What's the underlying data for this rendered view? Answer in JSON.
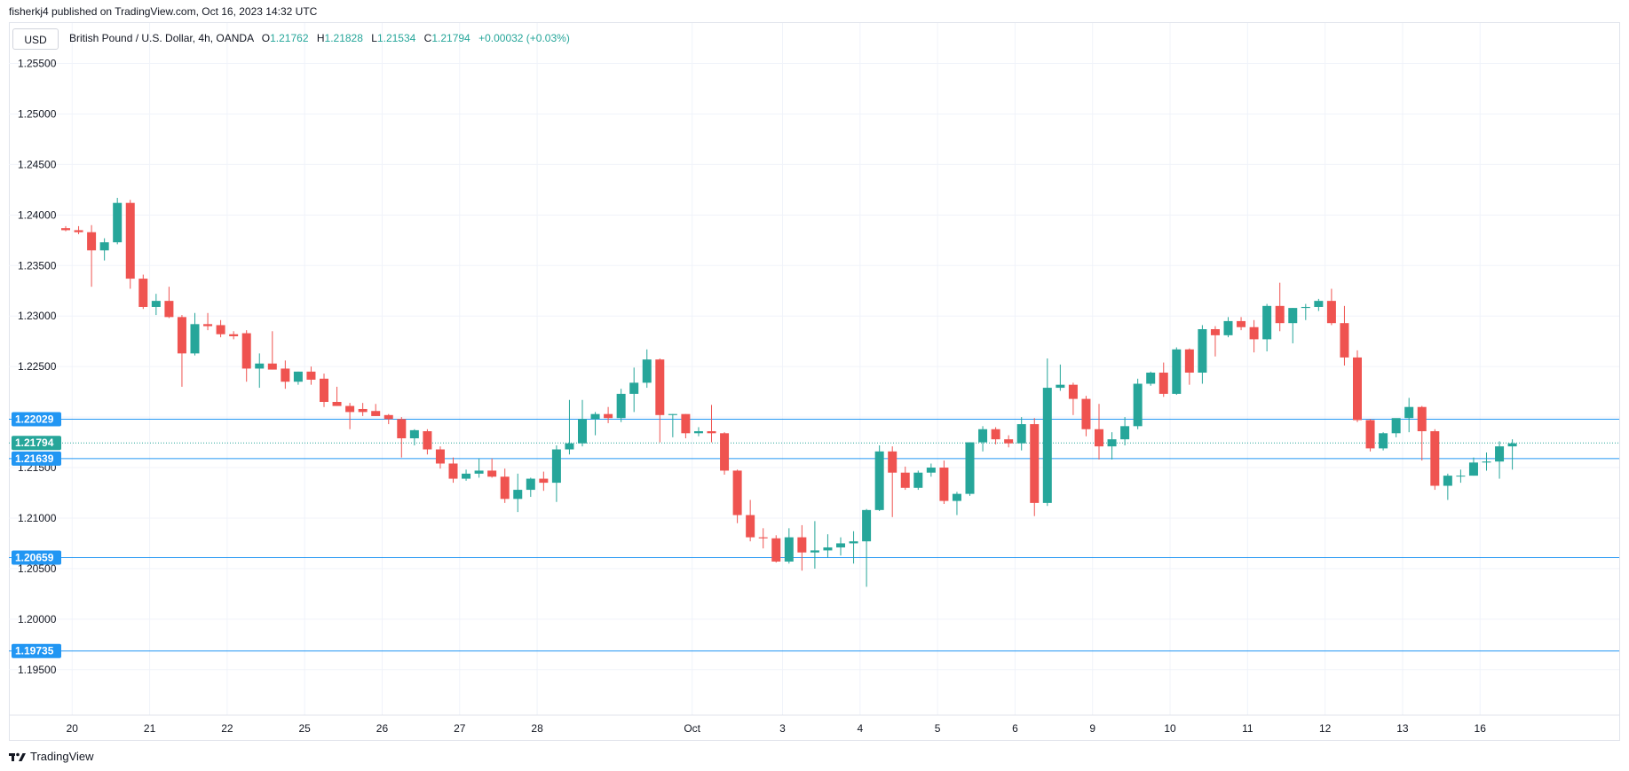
{
  "header": {
    "published_line": "fisherkj4 published on TradingView.com, Oct 16, 2023 14:32 UTC"
  },
  "toolbar": {
    "currency_label": "USD"
  },
  "legend": {
    "symbol": "British Pound / U.S. Dollar, 4h, OANDA",
    "open_label": "O",
    "open": "1.21762",
    "high_label": "H",
    "high": "1.21828",
    "low_label": "L",
    "low": "1.21534",
    "close_label": "C",
    "close": "1.21794",
    "change": "+0.00032 (+0.03%)"
  },
  "footer": {
    "brand": "TradingView"
  },
  "colors": {
    "up": "#26a69a",
    "down": "#ef5350",
    "level_line": "#2196f3",
    "grid": "#f0f3fa"
  },
  "chart_data": {
    "type": "candlestick",
    "ylim": [
      1.191,
      1.2595
    ],
    "ytick_values": [
      1.2555,
      1.2505,
      1.2455,
      1.2405,
      1.2355,
      1.2305,
      1.2255,
      1.2205,
      1.2155,
      1.2105,
      1.2055,
      1.2005,
      1.1955
    ],
    "ytick_labels": [
      "1.25500",
      "1.25000",
      "1.24500",
      "1.24000",
      "1.23500",
      "1.23000",
      "1.22500",
      "1.22000",
      "1.21500",
      "1.21000",
      "1.20500",
      "1.20000",
      "1.19500"
    ],
    "xtick_labels": [
      {
        "label": "20",
        "bar": 0.5
      },
      {
        "label": "21",
        "bar": 6.5
      },
      {
        "label": "22",
        "bar": 12.5
      },
      {
        "label": "25",
        "bar": 18.5
      },
      {
        "label": "26",
        "bar": 24.5
      },
      {
        "label": "27",
        "bar": 30.5
      },
      {
        "label": "28",
        "bar": 36.5
      },
      {
        "label": "Oct",
        "bar": 48.5
      },
      {
        "label": "3",
        "bar": 55.5
      },
      {
        "label": "4",
        "bar": 61.5
      },
      {
        "label": "5",
        "bar": 67.5
      },
      {
        "label": "6",
        "bar": 73.5
      },
      {
        "label": "9",
        "bar": 79.5
      },
      {
        "label": "10",
        "bar": 85.5
      },
      {
        "label": "11",
        "bar": 91.5
      },
      {
        "label": "12",
        "bar": 97.5
      },
      {
        "label": "13",
        "bar": 103.5
      },
      {
        "label": "16",
        "bar": 109.5
      }
    ],
    "horizontal_levels": [
      {
        "value": 1.22029,
        "label": "1.22029"
      },
      {
        "value": 1.21639,
        "label": "1.21639"
      },
      {
        "value": 1.20659,
        "label": "1.20659"
      },
      {
        "value": 1.19735,
        "label": "1.19735"
      }
    ],
    "last_price": {
      "value": 1.21794,
      "label": "1.21794"
    },
    "candles": [
      [
        1.2392,
        1.2394,
        1.2389,
        1.239
      ],
      [
        1.239,
        1.2394,
        1.2386,
        1.2388
      ],
      [
        1.2388,
        1.2395,
        1.2334,
        1.237
      ],
      [
        1.237,
        1.2382,
        1.236,
        1.2378
      ],
      [
        1.2378,
        1.2422,
        1.2376,
        1.2417
      ],
      [
        1.2417,
        1.242,
        1.2332,
        1.2342
      ],
      [
        1.2342,
        1.2346,
        1.2312,
        1.2314
      ],
      [
        1.2314,
        1.2327,
        1.2306,
        1.232
      ],
      [
        1.232,
        1.2334,
        1.2303,
        1.2304
      ],
      [
        1.2304,
        1.2306,
        1.2235,
        1.2268
      ],
      [
        1.2268,
        1.2308,
        1.2266,
        1.2297
      ],
      [
        1.2297,
        1.2308,
        1.2291,
        1.2295
      ],
      [
        1.2296,
        1.2301,
        1.2284,
        1.2287
      ],
      [
        1.2287,
        1.229,
        1.2282,
        1.2285
      ],
      [
        1.2288,
        1.2291,
        1.224,
        1.2253
      ],
      [
        1.2253,
        1.2268,
        1.2234,
        1.2258
      ],
      [
        1.2258,
        1.229,
        1.2252,
        1.2252
      ],
      [
        1.2253,
        1.2261,
        1.2233,
        1.224
      ],
      [
        1.224,
        1.225,
        1.2237,
        1.225
      ],
      [
        1.225,
        1.2255,
        1.2237,
        1.2242
      ],
      [
        1.2243,
        1.2248,
        1.2215,
        1.222
      ],
      [
        1.222,
        1.2235,
        1.2216,
        1.2216
      ],
      [
        1.2216,
        1.2219,
        1.2193,
        1.221
      ],
      [
        1.2213,
        1.2219,
        1.2206,
        1.221
      ],
      [
        1.2211,
        1.2218,
        1.2206,
        1.2206
      ],
      [
        1.2207,
        1.2208,
        1.2198,
        1.2203
      ],
      [
        1.2203,
        1.2205,
        1.2165,
        1.2184
      ],
      [
        1.2184,
        1.2193,
        1.2177,
        1.2192
      ],
      [
        1.2191,
        1.2193,
        1.2168,
        1.2173
      ],
      [
        1.2173,
        1.2176,
        1.2154,
        1.2159
      ],
      [
        1.2159,
        1.2165,
        1.214,
        1.2144
      ],
      [
        1.2144,
        1.2153,
        1.2142,
        1.2149
      ],
      [
        1.2149,
        1.2164,
        1.2145,
        1.2152
      ],
      [
        1.2152,
        1.2164,
        1.2145,
        1.2146
      ],
      [
        1.2146,
        1.2154,
        1.212,
        1.2124
      ],
      [
        1.2124,
        1.2149,
        1.2111,
        1.2133
      ],
      [
        1.2133,
        1.2145,
        1.2126,
        1.2144
      ],
      [
        1.2144,
        1.2151,
        1.2132,
        1.214
      ],
      [
        1.214,
        1.2177,
        1.2121,
        1.2173
      ],
      [
        1.2173,
        1.2222,
        1.2168,
        1.2179
      ],
      [
        1.2179,
        1.2222,
        1.2176,
        1.2203
      ],
      [
        1.2203,
        1.221,
        1.2187,
        1.2208
      ],
      [
        1.2208,
        1.2215,
        1.2199,
        1.2204
      ],
      [
        1.2204,
        1.2233,
        1.22,
        1.2228
      ],
      [
        1.2228,
        1.2254,
        1.221,
        1.2239
      ],
      [
        1.2239,
        1.2272,
        1.2234,
        1.2262
      ],
      [
        1.2262,
        1.2263,
        1.218,
        1.2207
      ],
      [
        1.2207,
        1.2208,
        1.2185,
        1.2208
      ],
      [
        1.2208,
        1.2208,
        1.2184,
        1.2189
      ],
      [
        1.2189,
        1.2195,
        1.2186,
        1.2191
      ],
      [
        1.2191,
        1.2217,
        1.218,
        1.2189
      ],
      [
        1.2189,
        1.219,
        1.2148,
        1.2152
      ],
      [
        1.2152,
        1.2153,
        1.21,
        1.2108
      ],
      [
        1.2108,
        1.2123,
        1.2082,
        1.2086
      ],
      [
        1.2086,
        1.2095,
        1.2075,
        1.2085
      ],
      [
        1.2085,
        1.2088,
        1.2061,
        1.2062
      ],
      [
        1.2062,
        1.2095,
        1.206,
        1.2086
      ],
      [
        1.2086,
        1.2098,
        1.2053,
        1.2071
      ],
      [
        1.2071,
        1.2102,
        1.2055,
        1.2073
      ],
      [
        1.2073,
        1.2089,
        1.2066,
        1.2076
      ],
      [
        1.2076,
        1.2086,
        1.2068,
        1.208
      ],
      [
        1.208,
        1.2092,
        1.206,
        1.2082
      ],
      [
        1.2082,
        1.2114,
        1.2037,
        1.2113
      ],
      [
        1.2113,
        1.2177,
        1.2112,
        1.2171
      ],
      [
        1.2171,
        1.2176,
        1.2106,
        1.215
      ],
      [
        1.215,
        1.2156,
        1.2133,
        1.2135
      ],
      [
        1.2135,
        1.2152,
        1.2133,
        1.215
      ],
      [
        1.215,
        1.2159,
        1.2146,
        1.2155
      ],
      [
        1.2155,
        1.2162,
        1.2119,
        1.2122
      ],
      [
        1.2122,
        1.2131,
        1.2108,
        1.2129
      ],
      [
        1.2129,
        1.218,
        1.2127,
        1.218
      ],
      [
        1.218,
        1.2196,
        1.2171,
        1.2193
      ],
      [
        1.2193,
        1.2195,
        1.2178,
        1.2183
      ],
      [
        1.2183,
        1.2187,
        1.2175,
        1.2179
      ],
      [
        1.2179,
        1.2205,
        1.2172,
        1.2198
      ],
      [
        1.2198,
        1.2204,
        1.2107,
        1.212
      ],
      [
        1.212,
        1.2263,
        1.2117,
        1.2234
      ],
      [
        1.2234,
        1.2257,
        1.2231,
        1.2237
      ],
      [
        1.2237,
        1.2239,
        1.2207,
        1.2223
      ],
      [
        1.2223,
        1.2226,
        1.2186,
        1.2193
      ],
      [
        1.2193,
        1.2218,
        1.2163,
        1.2176
      ],
      [
        1.2176,
        1.219,
        1.2163,
        1.2183
      ],
      [
        1.2183,
        1.2205,
        1.2177,
        1.2196
      ],
      [
        1.2196,
        1.2243,
        1.2193,
        1.2238
      ],
      [
        1.2238,
        1.225,
        1.2236,
        1.2249
      ],
      [
        1.2249,
        1.2259,
        1.2225,
        1.2228
      ],
      [
        1.2228,
        1.2274,
        1.2227,
        1.2272
      ],
      [
        1.2272,
        1.2273,
        1.2237,
        1.2249
      ],
      [
        1.2249,
        1.2296,
        1.2238,
        1.2292
      ],
      [
        1.2292,
        1.2295,
        1.2265,
        1.2286
      ],
      [
        1.2286,
        1.2304,
        1.2284,
        1.23
      ],
      [
        1.23,
        1.2304,
        1.2291,
        1.2294
      ],
      [
        1.2294,
        1.2301,
        1.2269,
        1.2282
      ],
      [
        1.2282,
        1.2317,
        1.227,
        1.2315
      ],
      [
        1.2315,
        1.2338,
        1.229,
        1.2298
      ],
      [
        1.2298,
        1.2313,
        1.2278,
        1.2313
      ],
      [
        1.2313,
        1.2317,
        1.2301,
        1.2314
      ],
      [
        1.2314,
        1.2322,
        1.231,
        1.232
      ],
      [
        1.232,
        1.2332,
        1.2296,
        1.2298
      ],
      [
        1.2298,
        1.2315,
        1.2256,
        1.2264
      ],
      [
        1.2264,
        1.2271,
        1.22,
        1.2202
      ],
      [
        1.2202,
        1.2203,
        1.2171,
        1.2174
      ],
      [
        1.2174,
        1.219,
        1.2172,
        1.2189
      ],
      [
        1.2189,
        1.2202,
        1.2185,
        1.2204
      ],
      [
        1.2204,
        1.2224,
        1.219,
        1.2215
      ],
      [
        1.2215,
        1.2216,
        1.2162,
        1.2191
      ],
      [
        1.2191,
        1.2193,
        1.2133,
        1.2137
      ],
      [
        1.2137,
        1.2149,
        1.2123,
        1.2147
      ],
      [
        1.2147,
        1.2153,
        1.214,
        1.2147
      ],
      [
        1.2147,
        1.2165,
        1.2147,
        1.216
      ],
      [
        1.216,
        1.217,
        1.2152,
        1.2161
      ],
      [
        1.2161,
        1.2181,
        1.2144,
        1.2176
      ],
      [
        1.2176,
        1.2183,
        1.2153,
        1.2179
      ]
    ]
  }
}
